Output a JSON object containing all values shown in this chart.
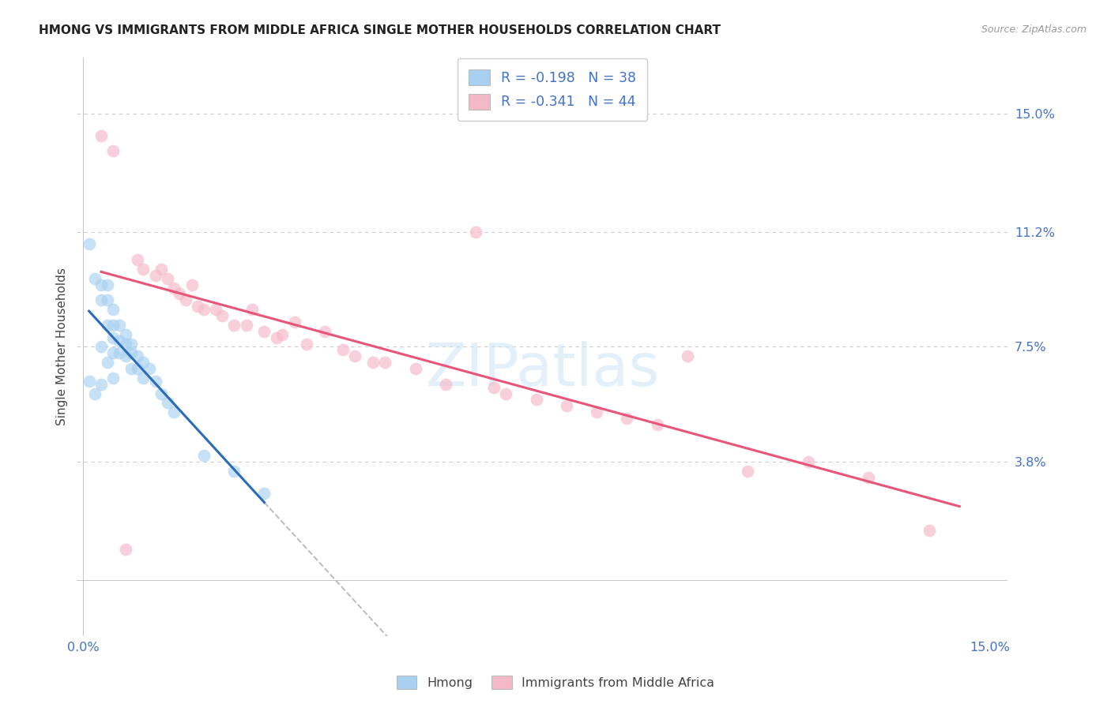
{
  "title": "HMONG VS IMMIGRANTS FROM MIDDLE AFRICA SINGLE MOTHER HOUSEHOLDS CORRELATION CHART",
  "source": "Source: ZipAtlas.com",
  "ylabel": "Single Mother Households",
  "legend_hmong_R": "-0.198",
  "legend_hmong_N": "38",
  "legend_africa_R": "-0.341",
  "legend_africa_N": "44",
  "hmong_color": "#a8d0f0",
  "africa_color": "#f5b8c8",
  "hmong_line_color": "#2b6cb8",
  "africa_line_color": "#e8547a",
  "title_color": "#222222",
  "axis_label_color": "#444444",
  "tick_color": "#4472c4",
  "grid_color": "#cccccc",
  "ytick_values": [
    0.038,
    0.075,
    0.112,
    0.15
  ],
  "ytick_labels": [
    "3.8%",
    "7.5%",
    "11.2%",
    "15.0%"
  ],
  "xlim": [
    0.0,
    0.15
  ],
  "ylim": [
    0.0,
    0.16
  ],
  "hmong_x": [
    0.001,
    0.001,
    0.002,
    0.002,
    0.003,
    0.003,
    0.003,
    0.003,
    0.004,
    0.004,
    0.004,
    0.004,
    0.005,
    0.005,
    0.005,
    0.005,
    0.005,
    0.006,
    0.006,
    0.006,
    0.007,
    0.007,
    0.007,
    0.008,
    0.008,
    0.008,
    0.009,
    0.009,
    0.01,
    0.01,
    0.011,
    0.012,
    0.013,
    0.014,
    0.015,
    0.02,
    0.025,
    0.03
  ],
  "hmong_y": [
    0.108,
    0.064,
    0.097,
    0.06,
    0.095,
    0.09,
    0.075,
    0.063,
    0.095,
    0.09,
    0.082,
    0.07,
    0.087,
    0.082,
    0.078,
    0.073,
    0.065,
    0.082,
    0.077,
    0.073,
    0.079,
    0.076,
    0.072,
    0.076,
    0.073,
    0.068,
    0.072,
    0.068,
    0.07,
    0.065,
    0.068,
    0.064,
    0.06,
    0.057,
    0.054,
    0.04,
    0.035,
    0.028
  ],
  "africa_x": [
    0.003,
    0.005,
    0.007,
    0.009,
    0.01,
    0.012,
    0.013,
    0.014,
    0.015,
    0.016,
    0.017,
    0.018,
    0.019,
    0.02,
    0.022,
    0.023,
    0.025,
    0.027,
    0.028,
    0.03,
    0.032,
    0.033,
    0.035,
    0.037,
    0.04,
    0.043,
    0.045,
    0.048,
    0.05,
    0.055,
    0.06,
    0.065,
    0.068,
    0.07,
    0.075,
    0.08,
    0.085,
    0.09,
    0.095,
    0.1,
    0.11,
    0.12,
    0.13,
    0.14
  ],
  "africa_y": [
    0.143,
    0.138,
    0.01,
    0.103,
    0.1,
    0.098,
    0.1,
    0.097,
    0.094,
    0.092,
    0.09,
    0.095,
    0.088,
    0.087,
    0.087,
    0.085,
    0.082,
    0.082,
    0.087,
    0.08,
    0.078,
    0.079,
    0.083,
    0.076,
    0.08,
    0.074,
    0.072,
    0.07,
    0.07,
    0.068,
    0.063,
    0.112,
    0.062,
    0.06,
    0.058,
    0.056,
    0.054,
    0.052,
    0.05,
    0.072,
    0.035,
    0.038,
    0.033,
    0.016
  ]
}
